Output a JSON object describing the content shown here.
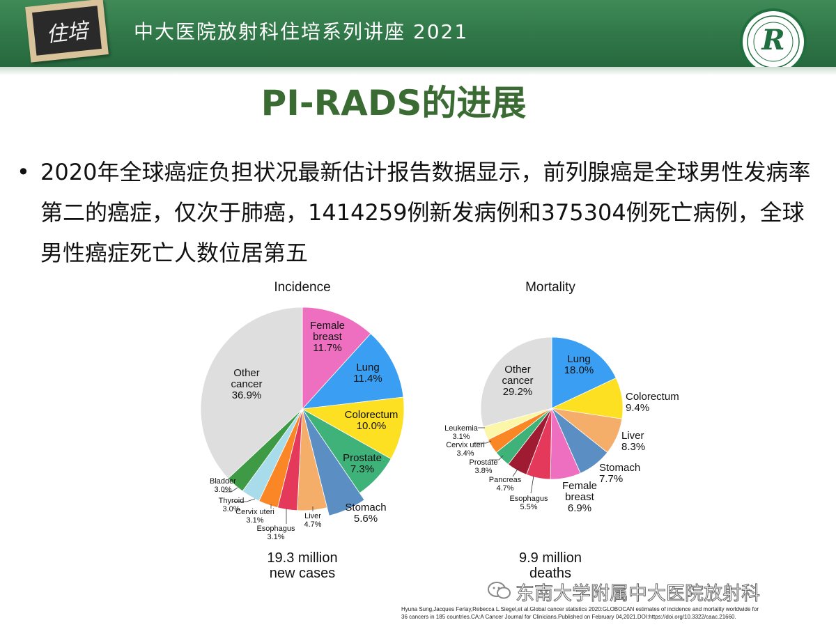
{
  "header": {
    "badge_text": "住培",
    "series_title": "中大医院放射科住培系列讲座 2021",
    "logo_letter": "R",
    "colors": {
      "header_green": "#2e7446",
      "title_green": "#3a6b33"
    }
  },
  "slide": {
    "title": "PI-RADS的进展",
    "bullet_marker": "•",
    "bullet_text": "2020年全球癌症负担状况最新估计报告数据显示，前列腺癌是全球男性发病率第二的癌症，仅次于肺癌，1414259例新发病例和375304例死亡病例，全球男性癌症死亡人数位居第五"
  },
  "chart_data": [
    {
      "type": "pie",
      "title": "Incidence",
      "caption_lines": [
        "19.3 million",
        "new cases"
      ],
      "slices": [
        {
          "label_lines": [
            "Female",
            "breast"
          ],
          "value": 11.7,
          "value_label": "11.7%",
          "color": "#ee6fc0"
        },
        {
          "label_lines": [
            "Lung"
          ],
          "value": 11.4,
          "value_label": "11.4%",
          "color": "#3a9ff2"
        },
        {
          "label_lines": [
            "Colorectum"
          ],
          "value": 10.0,
          "value_label": "10.0%",
          "color": "#fde022"
        },
        {
          "label_lines": [
            "Prostate"
          ],
          "value": 7.3,
          "value_label": "7.3%",
          "color": "#3fb27a"
        },
        {
          "label_lines": [
            "Stomach"
          ],
          "value": 5.6,
          "value_label": "5.6%",
          "color": "#5b8fc3"
        },
        {
          "label_lines": [
            "Liver"
          ],
          "value": 4.7,
          "value_label": "4.7%",
          "color": "#f5ae6a"
        },
        {
          "label_lines": [
            "Esophagus"
          ],
          "value": 3.1,
          "value_label": "3.1%",
          "color": "#e4395a"
        },
        {
          "label_lines": [
            "Cervix uteri"
          ],
          "value": 3.1,
          "value_label": "3.1%",
          "color": "#fb8625"
        },
        {
          "label_lines": [
            "Thyroid"
          ],
          "value": 3.0,
          "value_label": "3.0%",
          "color": "#a9dcea"
        },
        {
          "label_lines": [
            "Bladder"
          ],
          "value": 3.0,
          "value_label": "3.0%",
          "color": "#3e9a44"
        },
        {
          "label_lines": [
            "Other",
            "cancer"
          ],
          "value": 36.9,
          "value_label": "36.9%",
          "color": "#dedede"
        }
      ]
    },
    {
      "type": "pie",
      "title": "Mortality",
      "caption_lines": [
        "9.9 million",
        "deaths"
      ],
      "slices": [
        {
          "label_lines": [
            "Lung"
          ],
          "value": 18.0,
          "value_label": "18.0%",
          "color": "#3a9ff2"
        },
        {
          "label_lines": [
            "Colorectum"
          ],
          "value": 9.4,
          "value_label": "9.4%",
          "color": "#fde022"
        },
        {
          "label_lines": [
            "Liver"
          ],
          "value": 8.3,
          "value_label": "8.3%",
          "color": "#f5ae6a"
        },
        {
          "label_lines": [
            "Stomach"
          ],
          "value": 7.7,
          "value_label": "7.7%",
          "color": "#5b8fc3"
        },
        {
          "label_lines": [
            "Female",
            "breast"
          ],
          "value": 6.9,
          "value_label": "6.9%",
          "color": "#ee6fc0"
        },
        {
          "label_lines": [
            "Esophagus"
          ],
          "value": 5.5,
          "value_label": "5.5%",
          "color": "#e4395a"
        },
        {
          "label_lines": [
            "Pancreas"
          ],
          "value": 4.7,
          "value_label": "4.7%",
          "color": "#9e1b32"
        },
        {
          "label_lines": [
            "Prostate"
          ],
          "value": 3.8,
          "value_label": "3.8%",
          "color": "#3fb27a"
        },
        {
          "label_lines": [
            "Cervix uteri"
          ],
          "value": 3.4,
          "value_label": "3.4%",
          "color": "#fb8625"
        },
        {
          "label_lines": [
            "Leukemia"
          ],
          "value": 3.1,
          "value_label": "3.1%",
          "color": "#fbf6a8"
        },
        {
          "label_lines": [
            "Other",
            "cancer"
          ],
          "value": 29.2,
          "value_label": "29.2%",
          "color": "#dedede"
        }
      ]
    }
  ],
  "footer": {
    "watermark": "东南大学附属中大医院放射科",
    "reference_lines": [
      "Hyuna Sung,Jacques Ferlay,Rebecca L.Siegel,et al.Global cancer statistics 2020:GLOBOCAN estimates of incidence and mortality worldwide for",
      "36 cancers in 185 countries.CA:A Cancer Journal for Clinicians.Published on February 04,2021.DOI:https://doi.org/10.3322/caac.21660."
    ]
  }
}
